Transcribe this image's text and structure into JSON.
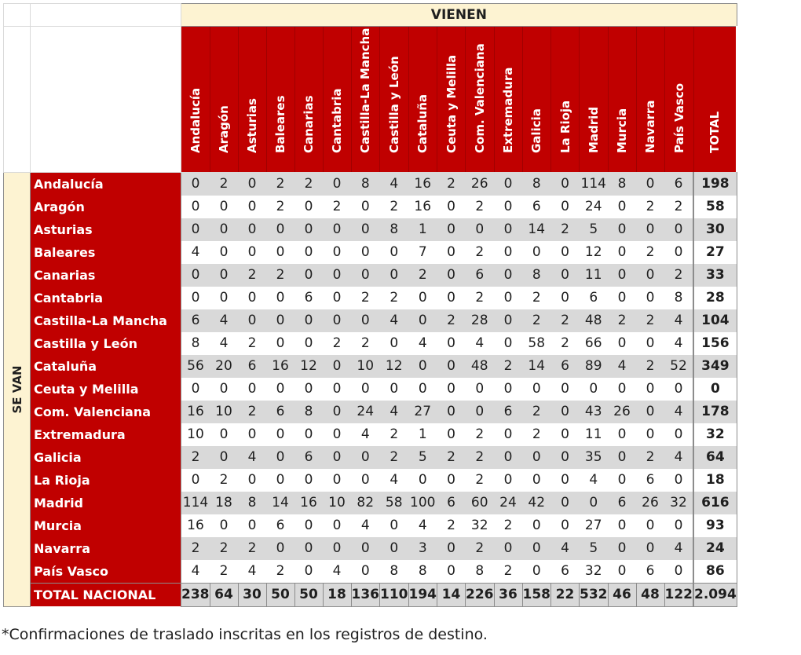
{
  "header": {
    "vienen_label": "VIENEN",
    "sevan_label": "SE VAN",
    "columns": [
      "Andalucía",
      "Aragón",
      "Asturias",
      "Baleares",
      "Canarias",
      "Cantabria",
      "Castilla-La Mancha",
      "Castilla y León",
      "Cataluña",
      "Ceuta y Melilla",
      "Com. Valenciana",
      "Extremadura",
      "Galicia",
      "La Rioja",
      "Madrid",
      "Murcia",
      "Navarra",
      "País Vasco"
    ],
    "total_label": "TOTAL"
  },
  "rows": [
    {
      "label": "Andalucía",
      "values": [
        "0",
        "2",
        "0",
        "2",
        "2",
        "0",
        "8",
        "4",
        "16",
        "2",
        "26",
        "0",
        "8",
        "0",
        "114",
        "8",
        "0",
        "6"
      ],
      "total": "198"
    },
    {
      "label": "Aragón",
      "values": [
        "0",
        "0",
        "0",
        "2",
        "0",
        "2",
        "0",
        "2",
        "16",
        "0",
        "2",
        "0",
        "6",
        "0",
        "24",
        "0",
        "2",
        "2"
      ],
      "total": "58"
    },
    {
      "label": "Asturias",
      "values": [
        "0",
        "0",
        "0",
        "0",
        "0",
        "0",
        "0",
        "8",
        "1",
        "0",
        "0",
        "0",
        "14",
        "2",
        "5",
        "0",
        "0",
        "0"
      ],
      "total": "30"
    },
    {
      "label": "Baleares",
      "values": [
        "4",
        "0",
        "0",
        "0",
        "0",
        "0",
        "0",
        "0",
        "7",
        "0",
        "2",
        "0",
        "0",
        "0",
        "12",
        "0",
        "2",
        "0"
      ],
      "total": "27"
    },
    {
      "label": "Canarias",
      "values": [
        "0",
        "0",
        "2",
        "2",
        "0",
        "0",
        "0",
        "0",
        "2",
        "0",
        "6",
        "0",
        "8",
        "0",
        "11",
        "0",
        "0",
        "2"
      ],
      "total": "33"
    },
    {
      "label": "Cantabria",
      "values": [
        "0",
        "0",
        "0",
        "0",
        "6",
        "0",
        "2",
        "2",
        "0",
        "0",
        "2",
        "0",
        "2",
        "0",
        "6",
        "0",
        "0",
        "8"
      ],
      "total": "28"
    },
    {
      "label": "Castilla-La Mancha",
      "values": [
        "6",
        "4",
        "0",
        "0",
        "0",
        "0",
        "0",
        "4",
        "0",
        "2",
        "28",
        "0",
        "2",
        "2",
        "48",
        "2",
        "2",
        "4"
      ],
      "total": "104"
    },
    {
      "label": "Castilla y León",
      "values": [
        "8",
        "4",
        "2",
        "0",
        "0",
        "2",
        "2",
        "0",
        "4",
        "0",
        "4",
        "0",
        "58",
        "2",
        "66",
        "0",
        "0",
        "4"
      ],
      "total": "156"
    },
    {
      "label": "Cataluña",
      "values": [
        "56",
        "20",
        "6",
        "16",
        "12",
        "0",
        "10",
        "12",
        "0",
        "0",
        "48",
        "2",
        "14",
        "6",
        "89",
        "4",
        "2",
        "52"
      ],
      "total": "349"
    },
    {
      "label": "Ceuta y Melilla",
      "values": [
        "0",
        "0",
        "0",
        "0",
        "0",
        "0",
        "0",
        "0",
        "0",
        "0",
        "0",
        "0",
        "0",
        "0",
        "0",
        "0",
        "0",
        "0"
      ],
      "total": "0"
    },
    {
      "label": "Com. Valenciana",
      "values": [
        "16",
        "10",
        "2",
        "6",
        "8",
        "0",
        "24",
        "4",
        "27",
        "0",
        "0",
        "6",
        "2",
        "0",
        "43",
        "26",
        "0",
        "4"
      ],
      "total": "178"
    },
    {
      "label": "Extremadura",
      "values": [
        "10",
        "0",
        "0",
        "0",
        "0",
        "0",
        "4",
        "2",
        "1",
        "0",
        "2",
        "0",
        "2",
        "0",
        "11",
        "0",
        "0",
        "0"
      ],
      "total": "32"
    },
    {
      "label": "Galicia",
      "values": [
        "2",
        "0",
        "4",
        "0",
        "6",
        "0",
        "0",
        "2",
        "5",
        "2",
        "2",
        "0",
        "0",
        "0",
        "35",
        "0",
        "2",
        "4"
      ],
      "total": "64"
    },
    {
      "label": "La Rioja",
      "values": [
        "0",
        "2",
        "0",
        "0",
        "0",
        "0",
        "0",
        "4",
        "0",
        "0",
        "2",
        "0",
        "0",
        "0",
        "4",
        "0",
        "6",
        "0"
      ],
      "total": "18"
    },
    {
      "label": "Madrid",
      "values": [
        "114",
        "18",
        "8",
        "14",
        "16",
        "10",
        "82",
        "58",
        "100",
        "6",
        "60",
        "24",
        "42",
        "0",
        "0",
        "6",
        "26",
        "32"
      ],
      "total": "616"
    },
    {
      "label": "Murcia",
      "values": [
        "16",
        "0",
        "0",
        "6",
        "0",
        "0",
        "4",
        "0",
        "4",
        "2",
        "32",
        "2",
        "0",
        "0",
        "27",
        "0",
        "0",
        "0"
      ],
      "total": "93"
    },
    {
      "label": "Navarra",
      "values": [
        "2",
        "2",
        "2",
        "0",
        "0",
        "0",
        "0",
        "0",
        "3",
        "0",
        "2",
        "0",
        "0",
        "4",
        "5",
        "0",
        "0",
        "4"
      ],
      "total": "24"
    },
    {
      "label": "País Vasco",
      "values": [
        "4",
        "2",
        "4",
        "2",
        "0",
        "4",
        "0",
        "8",
        "8",
        "0",
        "8",
        "2",
        "0",
        "6",
        "32",
        "0",
        "6",
        "0"
      ],
      "total": "86"
    }
  ],
  "national": {
    "label": "TOTAL NACIONAL",
    "values": [
      "238",
      "64",
      "30",
      "50",
      "50",
      "18",
      "136",
      "110",
      "194",
      "14",
      "226",
      "36",
      "158",
      "22",
      "532",
      "46",
      "48",
      "122"
    ],
    "total": "2.094"
  },
  "footnote": "*Confirmaciones de traslado inscritas en los registros de destino."
}
